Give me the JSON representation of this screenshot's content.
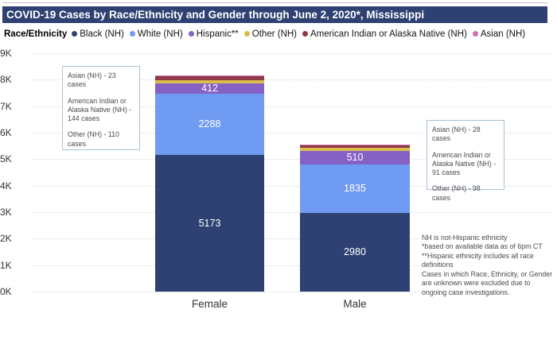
{
  "header": {
    "title": "COVID-19 Cases by Race/Ethnicity and Gender through June 2, 2020*, Mississippi",
    "bar_color": "#2E4172"
  },
  "legend": {
    "label": "Race/Ethnicity"
  },
  "chart_data": {
    "type": "bar",
    "stacked": true,
    "categories": [
      "Female",
      "Male"
    ],
    "series": [
      {
        "name": "Black (NH)",
        "color": "#2E4172",
        "values": [
          5173,
          2980
        ]
      },
      {
        "name": "White (NH)",
        "color": "#6F9BF2",
        "values": [
          2288,
          1835
        ]
      },
      {
        "name": "Hispanic**",
        "color": "#8661C5",
        "values": [
          412,
          510
        ]
      },
      {
        "name": "Other (NH)",
        "color": "#DBBD4E",
        "values": [
          110,
          98
        ]
      },
      {
        "name": "American Indian or Alaska Native (NH)",
        "color": "#8E3A44",
        "values": [
          144,
          91
        ]
      },
      {
        "name": "Asian (NH)",
        "color": "#CB6FB4",
        "values": [
          23,
          28
        ]
      }
    ],
    "ylim": [
      0,
      9000
    ],
    "ytick_labels": [
      "0K",
      "1K",
      "2K",
      "3K",
      "4K",
      "5K",
      "6K",
      "7K",
      "8K",
      "9K"
    ],
    "grid": "dotted-horizontal",
    "legend_position": "top",
    "value_labels_shown": {
      "Female": {
        "Black (NH)": 5173,
        "White (NH)": 2288,
        "Hispanic**": 412
      },
      "Male": {
        "Black (NH)": 2980,
        "White (NH)": 1835,
        "Hispanic**": 510
      }
    }
  },
  "annotations": {
    "female_note": {
      "lines": [
        "Asian (NH) - 23 cases",
        "American Indian or Alaska Native (NH) - 144 cases",
        "Other (NH) - 110 cases"
      ]
    },
    "male_note": {
      "lines": [
        "Asian (NH) - 28 cases",
        "American Indian or Alaska Native (NH) - 91 cases",
        "Other (NH) - 98 cases"
      ]
    }
  },
  "footnote": {
    "lines": [
      "NH is not-Hispanic ethnicity",
      "*based on available data as of 6pm CT",
      "**Hispanic ethnicity includes all race definitions",
      "Cases in which Race, Ethnicity, or Gender are unknown were excluded due to ongoing case investigations."
    ]
  }
}
